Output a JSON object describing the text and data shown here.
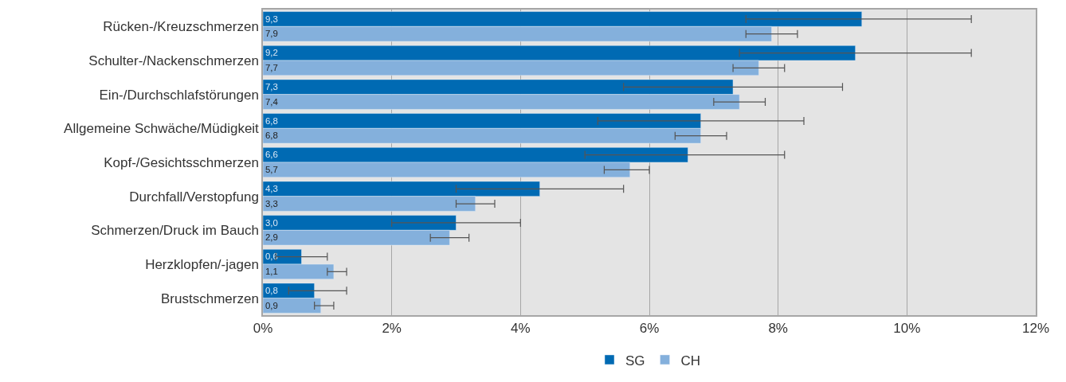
{
  "chart_data": {
    "type": "bar",
    "orientation": "horizontal",
    "categories": [
      "Rücken-/Kreuzschmerzen",
      "Schulter-/Nackenschmerzen",
      "Ein-/Durchschlafstörungen",
      "Allgemeine Schwäche/Müdigkeit",
      "Kopf-/Gesichtsschmerzen",
      "Durchfall/Verstopfung",
      "Schmerzen/Druck im Bauch",
      "Herzklopfen/-jagen",
      "Brustschmerzen"
    ],
    "series": [
      {
        "name": "SG",
        "color": "#006ab3",
        "values": [
          9.3,
          9.2,
          7.3,
          6.8,
          6.6,
          4.3,
          3.0,
          0.6,
          0.8
        ],
        "value_labels": [
          "9,3",
          "9,2",
          "7,3",
          "6,8",
          "6,6",
          "4,3",
          "3,0",
          "0,6",
          "0,8"
        ],
        "errors": [
          [
            7.5,
            11.0
          ],
          [
            7.4,
            11.0
          ],
          [
            5.6,
            9.0
          ],
          [
            5.2,
            8.4
          ],
          [
            5.0,
            8.1
          ],
          [
            3.0,
            5.6
          ],
          [
            2.0,
            4.0
          ],
          [
            0.2,
            1.0
          ],
          [
            0.4,
            1.3
          ]
        ]
      },
      {
        "name": "CH",
        "color": "#84b0dc",
        "values": [
          7.9,
          7.7,
          7.4,
          6.8,
          5.7,
          3.3,
          2.9,
          1.1,
          0.9
        ],
        "value_labels": [
          "7,9",
          "7,7",
          "7,4",
          "6,8",
          "5,7",
          "3,3",
          "2,9",
          "1,1",
          "0,9"
        ],
        "errors": [
          [
            7.5,
            8.3
          ],
          [
            7.3,
            8.1
          ],
          [
            7.0,
            7.8
          ],
          [
            6.4,
            7.2
          ],
          [
            5.3,
            6.0
          ],
          [
            3.0,
            3.6
          ],
          [
            2.6,
            3.2
          ],
          [
            1.0,
            1.3
          ],
          [
            0.8,
            1.1
          ]
        ]
      }
    ],
    "xlim": [
      0,
      12
    ],
    "xticks": [
      {
        "value": 0,
        "label": "0%"
      },
      {
        "value": 2,
        "label": "2%"
      },
      {
        "value": 4,
        "label": "4%"
      },
      {
        "value": 6,
        "label": "6%"
      },
      {
        "value": 8,
        "label": "8%"
      },
      {
        "value": 10,
        "label": "10%"
      },
      {
        "value": 12,
        "label": "12%"
      }
    ],
    "grid": "x",
    "legend": "bottom"
  }
}
